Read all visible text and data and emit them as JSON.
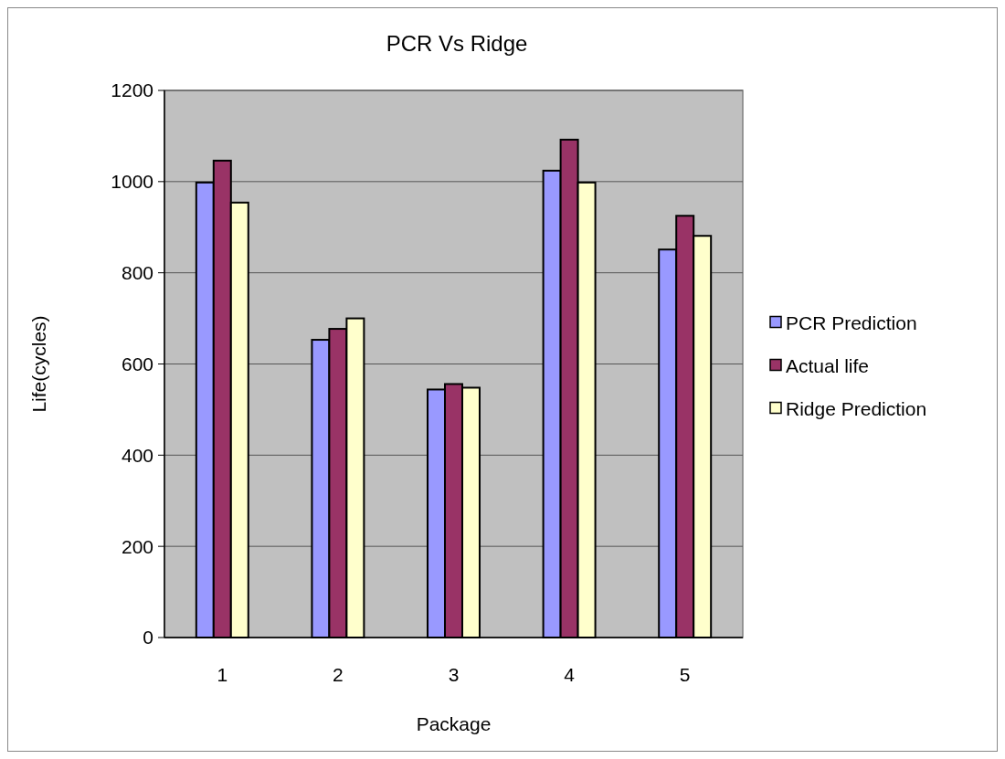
{
  "chart_data": {
    "type": "bar",
    "title": "PCR Vs Ridge",
    "xlabel": "Package",
    "ylabel": "Life(cycles)",
    "categories": [
      "1",
      "2",
      "3",
      "4",
      "5"
    ],
    "series": [
      {
        "name": "PCR Prediction",
        "color": "#9999ff",
        "values": [
          998,
          653,
          544,
          1024,
          851
        ]
      },
      {
        "name": "Actual life",
        "color": "#993366",
        "values": [
          1046,
          677,
          556,
          1092,
          925
        ]
      },
      {
        "name": "Ridge Prediction",
        "color": "#ffffcc",
        "values": [
          954,
          700,
          548,
          998,
          881
        ]
      }
    ],
    "ylim": [
      0,
      1200
    ],
    "yticks": [
      0,
      200,
      400,
      600,
      800,
      1000,
      1200
    ],
    "grid": "y",
    "legend": "right"
  }
}
